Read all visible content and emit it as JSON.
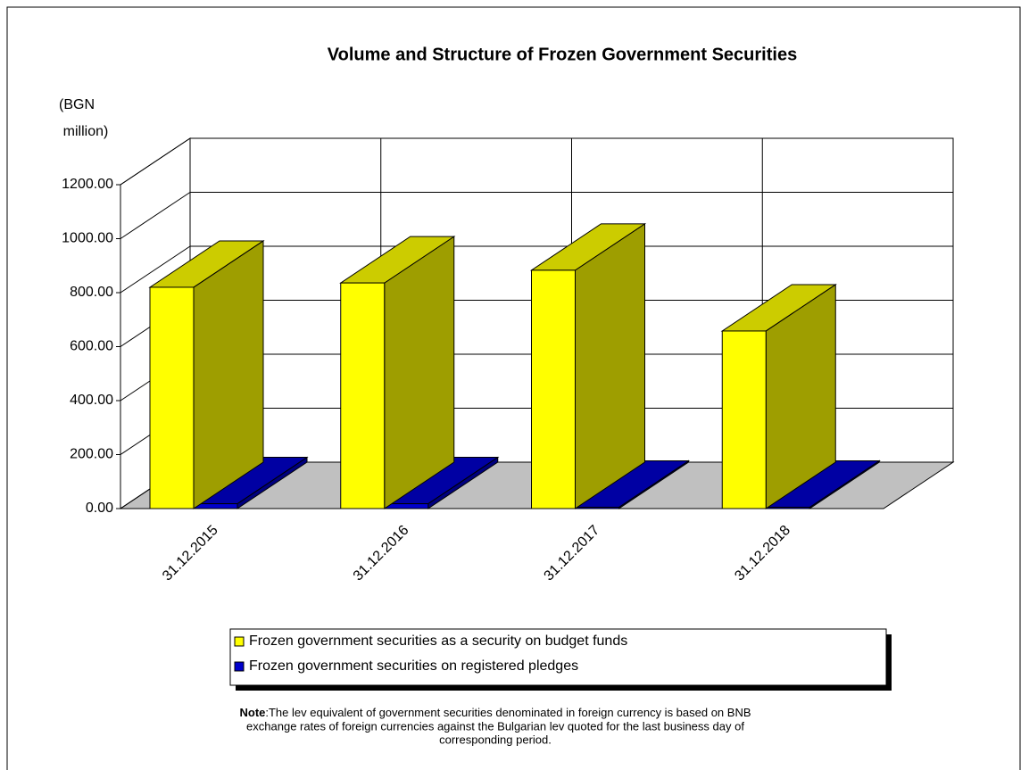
{
  "chart_data": {
    "type": "bar3d",
    "title": "Volume and Structure of Frozen Government Securities",
    "y_label": [
      "(BGN",
      "million)"
    ],
    "categories": [
      "31.12.2015",
      "31.12.2016",
      "31.12.2017",
      "31.12.2018"
    ],
    "series": [
      {
        "name": "Frozen government securities as a security on budget funds",
        "color": "#ffff00",
        "values": [
          820,
          836,
          883,
          658
        ]
      },
      {
        "name": "Frozen government securities on registered pledges",
        "color": "#0000cc",
        "values": [
          18,
          18,
          5,
          5
        ]
      }
    ],
    "ylim": [
      0,
      1200
    ],
    "yticks": [
      {
        "value": 0,
        "label": "0.00"
      },
      {
        "value": 200,
        "label": "200.00"
      },
      {
        "value": 400,
        "label": "400.00"
      },
      {
        "value": 600,
        "label": "600.00"
      },
      {
        "value": 800,
        "label": "800.00"
      },
      {
        "value": 1000,
        "label": "1000.00"
      },
      {
        "value": 1200,
        "label": "1200.00"
      }
    ],
    "grid": true
  },
  "note": {
    "label": "Note",
    "lines": [
      ":The lev equivalent of government securities denominated in foreign currency is based on BNB",
      "exchange rates of foreign currencies against the Bulgarian lev quoted for the last business day of",
      "corresponding period."
    ]
  }
}
